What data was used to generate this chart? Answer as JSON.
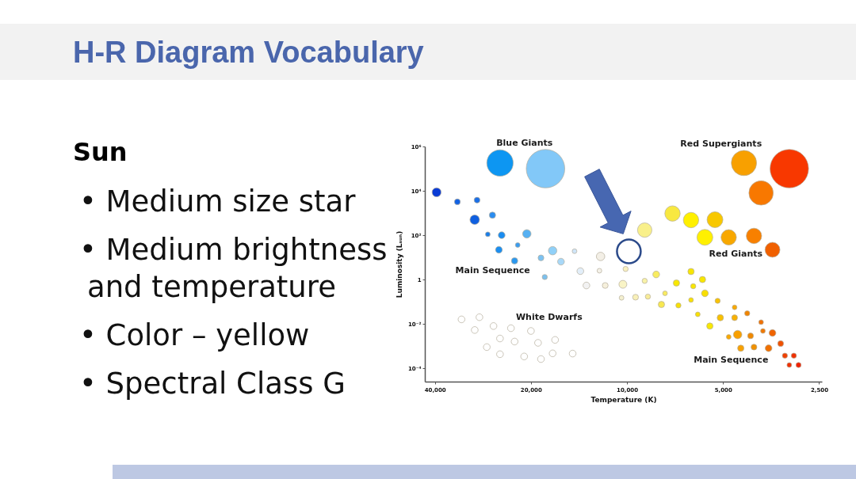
{
  "chart_data": [
    {
      "type": "other",
      "title": "H-R Diagram Vocabulary",
      "subtitle": "Sun",
      "annotations": [
        "• Medium size star",
        "• Medium brightness and temperature",
        "• Color – yellow",
        "• Spectral Class G"
      ]
    },
    {
      "type": "bubble",
      "xlabel": "Temperature (K)",
      "ylabel": "Luminosity (Lₛᵤₙ)",
      "log": "xy",
      "xlim": [
        43000,
        2450
      ],
      "xticks": [
        {
          "value": 40000,
          "label": "40,000"
        },
        {
          "value": 20000,
          "label": "20,000"
        },
        {
          "value": 10000,
          "label": "10,000"
        },
        {
          "value": 5000,
          "label": "5,000"
        },
        {
          "value": 2500,
          "label": "2,500"
        }
      ],
      "ylim": [
        2.5e-05,
        1000000
      ],
      "yticks": [
        {
          "value": 0.0001,
          "label": "10⁻⁴"
        },
        {
          "value": 0.01,
          "label": "10⁻²"
        },
        1,
        {
          "value": 100,
          "label": "10²"
        },
        {
          "value": 10000,
          "label": "10⁴"
        },
        {
          "value": 1000000,
          "label": "10⁶"
        }
      ],
      "grid": false,
      "marker": "circle",
      "series": [
        {
          "x": [
            25000,
            18000,
            4300,
            3800,
            3100,
            7200,
            6300,
            5300,
            5700,
            4800,
            4000,
            3500,
            8800,
            39500,
            34000,
            29500,
            30000,
            26400,
            27300,
            24700,
            20600,
            22000,
            25200,
            22500,
            17100,
            18600,
            16100,
            14600,
            18100,
            14000,
            12100,
            12200,
            13400,
            11700,
            10300,
            10100,
            8100,
            8800,
            6300,
            5800,
            6200,
            5700,
            7600,
            10400,
            9400,
            8600,
            7800,
            6900,
            6300,
            5200,
            6000,
            5500,
            5100,
            4600,
            4600,
            4200,
            3800,
            3750,
            3500,
            4500,
            4800,
            4100,
            4400,
            4000,
            3600,
            3300,
            3200,
            3000,
            3100,
            2900,
            33000,
            29000,
            30000,
            26200,
            23100,
            20000,
            25000,
            22500,
            19000,
            16800,
            27500,
            25000,
            21000,
            18600,
            17100,
            14800
          ],
          "values": [
            180000,
            100000,
            180000,
            8000,
            100000,
            950,
            480,
            500,
            80,
            80,
            93,
            22,
            170,
            8600,
            3200,
            3800,
            500,
            800,
            110,
            100,
            115,
            36,
            22,
            7,
            20,
            9.5,
            6.4,
            19,
            1.3,
            2.4,
            11,
            2.5,
            0.54,
            0.54,
            0.61,
            3,
            1.7,
            0.87,
            2.3,
            1,
            0.5,
            0.24,
            0.24,
            0.15,
            0.16,
            0.17,
            0.075,
            0.068,
            0.12,
            0.11,
            0.027,
            0.008,
            0.019,
            0.019,
            0.056,
            0.03,
            0.012,
            0.0048,
            0.0039,
            0.0033,
            0.0026,
            0.0029,
            0.0008,
            0.0009,
            0.0008,
            0.0013,
            0.00037,
            0.00037,
            0.00014,
            0.00014,
            0.016,
            0.02,
            0.0053,
            0.008,
            0.0064,
            0.0048,
            0.0022,
            0.0016,
            0.0014,
            0.0019,
            0.0009,
            0.00043,
            0.00034,
            0.00026,
            0.00047,
            0.00046
          ],
          "sizes": [
            0.47,
            1,
            0.43,
            0.4,
            1,
            0.16,
            0.16,
            0.17,
            0.17,
            0.16,
            0.16,
            0.15,
            0.14,
            0.055,
            0.023,
            0.023,
            0.061,
            0.027,
            0.015,
            0.031,
            0.048,
            0.015,
            0.031,
            0.027,
            0.048,
            0.023,
            0.031,
            0.015,
            0.018,
            0.031,
            0.048,
            0.015,
            0.031,
            0.023,
            0.042,
            0.018,
            0.031,
            0.018,
            0.027,
            0.027,
            0.018,
            0.031,
            0.015,
            0.015,
            0.023,
            0.018,
            0.027,
            0.018,
            0.015,
            0.018,
            0.015,
            0.027,
            0.027,
            0.023,
            0.015,
            0.018,
            0.015,
            0.015,
            0.031,
            0.048,
            0.015,
            0.023,
            0.027,
            0.023,
            0.031,
            0.023,
            0.018,
            0.018,
            0.015,
            0.018,
            0.031,
            0.031,
            0.031,
            0.031,
            0.031,
            0.031,
            0.031,
            0.031,
            0.031,
            0.031,
            0.031,
            0.031,
            0.031,
            0.031,
            0.031,
            0.031
          ],
          "colors": [
            "#0d96f2",
            "#82c8f8",
            "#f8a000",
            "#f87800",
            "#f83800",
            "#f8e840",
            "#fff000",
            "#f8c800",
            "#fff000",
            "#f8a800",
            "#f88000",
            "#f06000",
            "#f9f08a",
            "#0a3cd6",
            "#1262e4",
            "#1a6fe8",
            "#0f5fe0",
            "#2a8cf0",
            "#1a7de8",
            "#1a8cf0",
            "#56b0f2",
            "#3a9cf0",
            "#1c8ef0",
            "#2a98f0",
            "#90d0f8",
            "#7cc2f2",
            "#a8d8f8",
            "#cfe5f8",
            "#7cc0ee",
            "#e2eef9",
            "#f3efe6",
            "#f4f1e8",
            "#f2f2f2",
            "#f6f0dc",
            "#f9f4c6",
            "#f9f0c0",
            "#f8ec60",
            "#f8f2a8",
            "#f8e600",
            "#f8e600",
            "#f8e600",
            "#f8de00",
            "#f8ea60",
            "#f4f0d0",
            "#f8f0b8",
            "#f8ec98",
            "#f8e850",
            "#f8e000",
            "#f8e000",
            "#f8c200",
            "#f8e000",
            "#f8e800",
            "#f8c000",
            "#f8b000",
            "#f8a800",
            "#f08400",
            "#f07000",
            "#f07800",
            "#f06400",
            "#f8a000",
            "#f8a800",
            "#f08800",
            "#f8a000",
            "#f09000",
            "#f07000",
            "#f05000",
            "#f04000",
            "#f03000",
            "#f03000",
            "#f02000",
            "#ffffff",
            "#ffffff",
            "#ffffff",
            "#ffffff",
            "#ffffff",
            "#ffffff",
            "#ffffff",
            "#ffffff",
            "#ffffff",
            "#ffffff",
            "#ffffff",
            "#ffffff",
            "#ffffff",
            "#ffffff",
            "#ffffff",
            "#ffffff"
          ]
        },
        {
          "x": [
            7000
          ],
          "values": [
            0.7
          ],
          "sizes": [
            0.027
          ],
          "colors": [
            "#f8e800"
          ]
        }
      ],
      "annotations": [
        "Blue Giants",
        "Red Supergiants",
        "Main Sequence",
        "Red Giants",
        "White Dwarfs",
        "Main Sequence"
      ]
    }
  ]
}
